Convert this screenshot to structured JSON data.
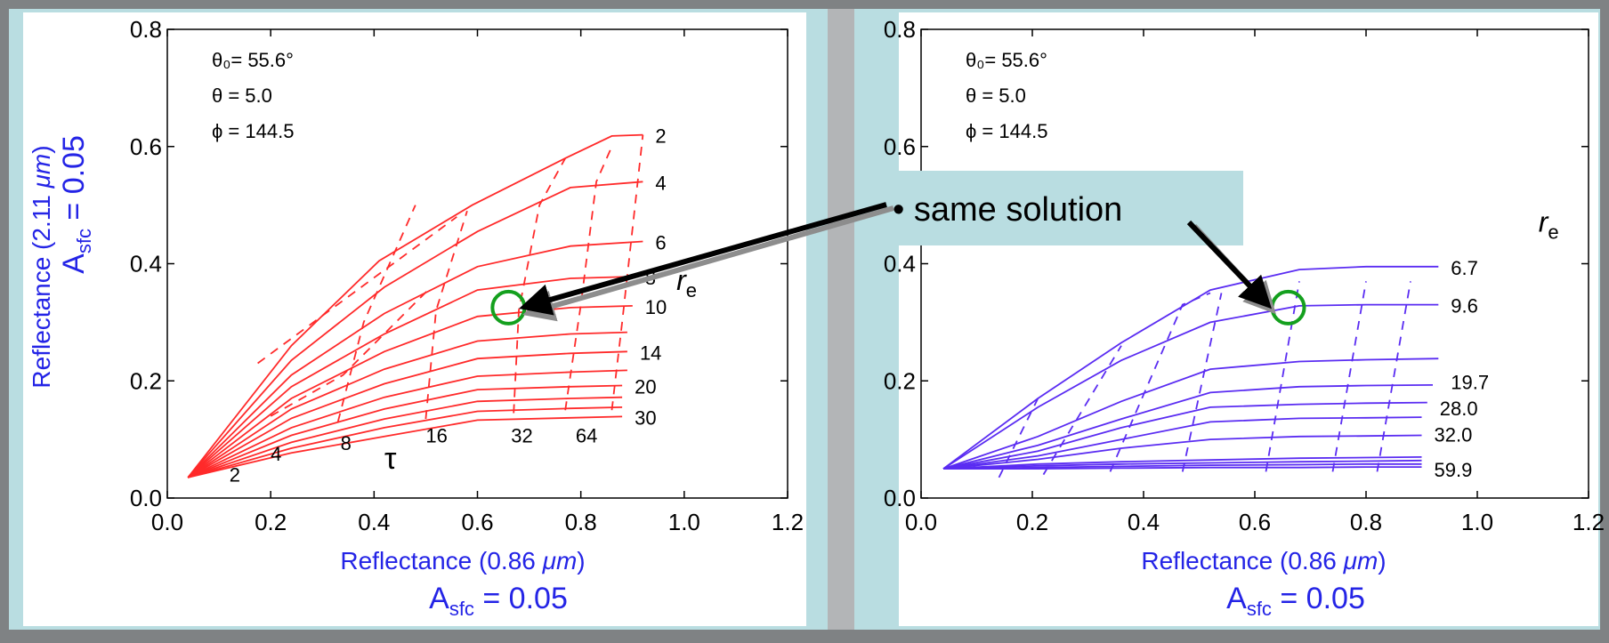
{
  "colors": {
    "frame": "#7f8284",
    "panel": "#b9dde1",
    "separator": "#b3b5b7",
    "left_curves": "#ff2a2a",
    "right_curves": "#5a2cf2",
    "axis_title": "#2424e6",
    "circle": "#14a01e",
    "callout_box": "#b9dde1"
  },
  "callout": {
    "text": "• same solution"
  },
  "chart_data": [
    {
      "type": "line",
      "panel": "left",
      "angles": [
        "θ₀= 55.6°",
        "θ = 5.0",
        "ϕ = 144.5"
      ],
      "xlabel_main": "Reflectance (0.86 ",
      "xlabel_unit": "μm",
      "xlabel_end": ")",
      "ylabel_main": "Reflectance  (2.11 ",
      "ylabel_unit": "μm",
      "ylabel_end": ")",
      "asfc_label": {
        "prefix": "A",
        "sub": "sfc",
        "value": " = 0.05"
      },
      "xlim": [
        0,
        1.2
      ],
      "ylim": [
        0,
        0.8
      ],
      "xticks": [
        "0.0",
        "0.2",
        "0.4",
        "0.6",
        "0.8",
        "1.0",
        "1.2"
      ],
      "yticks": [
        "0.0",
        "0.2",
        "0.4",
        "0.6",
        "0.8"
      ],
      "origin": [
        0.04,
        0.035
      ],
      "tau_symbol": "τ",
      "re_symbol": "r",
      "re_sub": "e",
      "tau_values": [
        {
          "label": "2",
          "lx": 0.12,
          "ly": 0.028
        },
        {
          "label": "4",
          "lx": 0.2,
          "ly": 0.064
        },
        {
          "label": "8",
          "lx": 0.335,
          "ly": 0.082
        },
        {
          "label": "16",
          "lx": 0.5,
          "ly": 0.095
        },
        {
          "label": "32",
          "lx": 0.665,
          "ly": 0.095
        },
        {
          "label": "64",
          "lx": 0.79,
          "ly": 0.095
        }
      ],
      "dashed_lines": [
        [
          [
            0.175,
            0.23
          ],
          [
            0.56,
            0.48
          ]
        ],
        [
          [
            0.2,
            0.14
          ],
          [
            0.34,
            0.21
          ],
          [
            0.51,
            0.36
          ]
        ],
        [
          [
            0.33,
            0.13
          ],
          [
            0.38,
            0.3
          ],
          [
            0.48,
            0.5
          ]
        ],
        [
          [
            0.5,
            0.135
          ],
          [
            0.52,
            0.32
          ],
          [
            0.58,
            0.49
          ]
        ],
        [
          [
            0.67,
            0.145
          ],
          [
            0.68,
            0.32
          ],
          [
            0.72,
            0.5
          ],
          [
            0.77,
            0.58
          ]
        ],
        [
          [
            0.77,
            0.15
          ],
          [
            0.8,
            0.33
          ],
          [
            0.83,
            0.54
          ],
          [
            0.86,
            0.6
          ]
        ],
        [
          [
            0.86,
            0.15
          ],
          [
            0.88,
            0.3
          ],
          [
            0.92,
            0.62
          ]
        ]
      ],
      "series": [
        {
          "name": "2",
          "points": [
            [
              0.24,
              0.26
            ],
            [
              0.41,
              0.405
            ],
            [
              0.59,
              0.5
            ],
            [
              0.77,
              0.58
            ],
            [
              0.86,
              0.618
            ],
            [
              0.92,
              0.62
            ]
          ]
        },
        {
          "name": "4",
          "points": [
            [
              0.24,
              0.235
            ],
            [
              0.42,
              0.36
            ],
            [
              0.6,
              0.455
            ],
            [
              0.78,
              0.53
            ],
            [
              0.92,
              0.54
            ]
          ]
        },
        {
          "name": "6",
          "points": [
            [
              0.24,
              0.21
            ],
            [
              0.42,
              0.315
            ],
            [
              0.6,
              0.395
            ],
            [
              0.78,
              0.43
            ],
            [
              0.92,
              0.438
            ]
          ]
        },
        {
          "name": "8",
          "points": [
            [
              0.24,
              0.19
            ],
            [
              0.42,
              0.28
            ],
            [
              0.6,
              0.355
            ],
            [
              0.78,
              0.375
            ],
            [
              0.9,
              0.378
            ]
          ]
        },
        {
          "name": "10",
          "points": [
            [
              0.24,
              0.17
            ],
            [
              0.42,
              0.25
            ],
            [
              0.6,
              0.31
            ],
            [
              0.78,
              0.325
            ],
            [
              0.9,
              0.328
            ]
          ]
        },
        {
          "name": "",
          "points": [
            [
              0.24,
              0.152
            ],
            [
              0.42,
              0.22
            ],
            [
              0.6,
              0.268
            ],
            [
              0.78,
              0.28
            ],
            [
              0.89,
              0.283
            ]
          ]
        },
        {
          "name": "14",
          "points": [
            [
              0.24,
              0.136
            ],
            [
              0.42,
              0.195
            ],
            [
              0.6,
              0.238
            ],
            [
              0.78,
              0.247
            ],
            [
              0.89,
              0.25
            ]
          ]
        },
        {
          "name": "",
          "points": [
            [
              0.24,
              0.12
            ],
            [
              0.42,
              0.172
            ],
            [
              0.6,
              0.208
            ],
            [
              0.78,
              0.215
            ],
            [
              0.89,
              0.218
            ]
          ]
        },
        {
          "name": "20",
          "points": [
            [
              0.24,
              0.107
            ],
            [
              0.42,
              0.152
            ],
            [
              0.6,
              0.185
            ],
            [
              0.78,
              0.19
            ],
            [
              0.88,
              0.192
            ]
          ]
        },
        {
          "name": "",
          "points": [
            [
              0.24,
              0.095
            ],
            [
              0.42,
              0.135
            ],
            [
              0.6,
              0.165
            ],
            [
              0.78,
              0.17
            ],
            [
              0.88,
              0.172
            ]
          ]
        },
        {
          "name": "",
          "points": [
            [
              0.24,
              0.085
            ],
            [
              0.42,
              0.12
            ],
            [
              0.6,
              0.148
            ],
            [
              0.78,
              0.153
            ],
            [
              0.88,
              0.155
            ]
          ]
        },
        {
          "name": "30",
          "points": [
            [
              0.24,
              0.077
            ],
            [
              0.42,
              0.105
            ],
            [
              0.6,
              0.133
            ],
            [
              0.78,
              0.137
            ],
            [
              0.88,
              0.139
            ]
          ]
        }
      ],
      "circle": [
        0.66,
        0.325
      ]
    },
    {
      "type": "line",
      "panel": "right",
      "angles": [
        "θ₀= 55.6°",
        "θ = 5.0",
        "ϕ = 144.5"
      ],
      "xlabel_main": "Reflectance (0.86 ",
      "xlabel_unit": "μm",
      "xlabel_end": ")",
      "asfc_label": {
        "prefix": "A",
        "sub": "sfc",
        "value": " = 0.05"
      },
      "xlim": [
        0,
        1.2
      ],
      "ylim": [
        0,
        0.8
      ],
      "xticks": [
        "0.0",
        "0.2",
        "0.4",
        "0.6",
        "0.8",
        "1.0",
        "1.2"
      ],
      "yticks": [
        "0.0",
        "0.2",
        "0.4",
        "0.6",
        "0.8"
      ],
      "origin": [
        0.04,
        0.05
      ],
      "re_symbol": "r",
      "re_sub": "e",
      "dashed_lines": [
        [
          [
            0.14,
            0.035
          ],
          [
            0.21,
            0.17
          ]
        ],
        [
          [
            0.22,
            0.04
          ],
          [
            0.36,
            0.26
          ]
        ],
        [
          [
            0.34,
            0.045
          ],
          [
            0.47,
            0.33
          ],
          [
            0.52,
            0.35
          ]
        ],
        [
          [
            0.47,
            0.045
          ],
          [
            0.54,
            0.35
          ]
        ],
        [
          [
            0.62,
            0.045
          ],
          [
            0.68,
            0.37
          ]
        ],
        [
          [
            0.74,
            0.045
          ],
          [
            0.8,
            0.37
          ]
        ],
        [
          [
            0.82,
            0.045
          ],
          [
            0.88,
            0.37
          ]
        ]
      ],
      "series": [
        {
          "name": "6.7",
          "points": [
            [
              0.21,
              0.17
            ],
            [
              0.36,
              0.265
            ],
            [
              0.52,
              0.355
            ],
            [
              0.68,
              0.39
            ],
            [
              0.8,
              0.395
            ],
            [
              0.93,
              0.395
            ]
          ]
        },
        {
          "name": "9.6",
          "points": [
            [
              0.21,
              0.155
            ],
            [
              0.36,
              0.235
            ],
            [
              0.52,
              0.3
            ],
            [
              0.68,
              0.328
            ],
            [
              0.8,
              0.33
            ],
            [
              0.93,
              0.33
            ]
          ]
        },
        {
          "name": "19.7",
          "points": [
            [
              0.21,
              0.105
            ],
            [
              0.36,
              0.165
            ],
            [
              0.52,
              0.22
            ],
            [
              0.68,
              0.233
            ],
            [
              0.8,
              0.236
            ],
            [
              0.93,
              0.238
            ]
          ]
        },
        {
          "name": "",
          "points": [
            [
              0.21,
              0.09
            ],
            [
              0.36,
              0.135
            ],
            [
              0.52,
              0.18
            ],
            [
              0.68,
              0.19
            ],
            [
              0.8,
              0.192
            ],
            [
              0.92,
              0.193
            ]
          ]
        },
        {
          "name": "28.0",
          "points": [
            [
              0.21,
              0.08
            ],
            [
              0.36,
              0.12
            ],
            [
              0.52,
              0.155
            ],
            [
              0.68,
              0.16
            ],
            [
              0.8,
              0.162
            ],
            [
              0.91,
              0.163
            ]
          ]
        },
        {
          "name": "",
          "points": [
            [
              0.21,
              0.072
            ],
            [
              0.36,
              0.1
            ],
            [
              0.52,
              0.13
            ],
            [
              0.68,
              0.136
            ],
            [
              0.8,
              0.137
            ],
            [
              0.9,
              0.138
            ]
          ]
        },
        {
          "name": "32.0",
          "points": [
            [
              0.21,
              0.066
            ],
            [
              0.36,
              0.085
            ],
            [
              0.52,
              0.1
            ],
            [
              0.68,
              0.105
            ],
            [
              0.8,
              0.106
            ],
            [
              0.9,
              0.107
            ]
          ]
        },
        {
          "name": "",
          "points": [
            [
              0.21,
              0.058
            ],
            [
              0.36,
              0.062
            ],
            [
              0.52,
              0.065
            ],
            [
              0.68,
              0.068
            ],
            [
              0.8,
              0.069
            ],
            [
              0.9,
              0.07
            ]
          ]
        },
        {
          "name": "",
          "points": [
            [
              0.21,
              0.055
            ],
            [
              0.36,
              0.058
            ],
            [
              0.52,
              0.06
            ],
            [
              0.68,
              0.062
            ],
            [
              0.8,
              0.063
            ],
            [
              0.9,
              0.064
            ]
          ]
        },
        {
          "name": "",
          "points": [
            [
              0.21,
              0.052
            ],
            [
              0.36,
              0.054
            ],
            [
              0.52,
              0.056
            ],
            [
              0.68,
              0.057
            ],
            [
              0.8,
              0.058
            ],
            [
              0.9,
              0.058
            ]
          ]
        },
        {
          "name": "59.9",
          "points": [
            [
              0.21,
              0.05
            ],
            [
              0.36,
              0.051
            ],
            [
              0.52,
              0.052
            ],
            [
              0.68,
              0.052
            ],
            [
              0.8,
              0.053
            ],
            [
              0.9,
              0.053
            ]
          ]
        }
      ],
      "label_offsets": [
        0.395,
        0.33,
        0.2,
        0.155,
        0.11,
        0.05
      ],
      "circle": [
        0.66,
        0.325
      ]
    }
  ]
}
